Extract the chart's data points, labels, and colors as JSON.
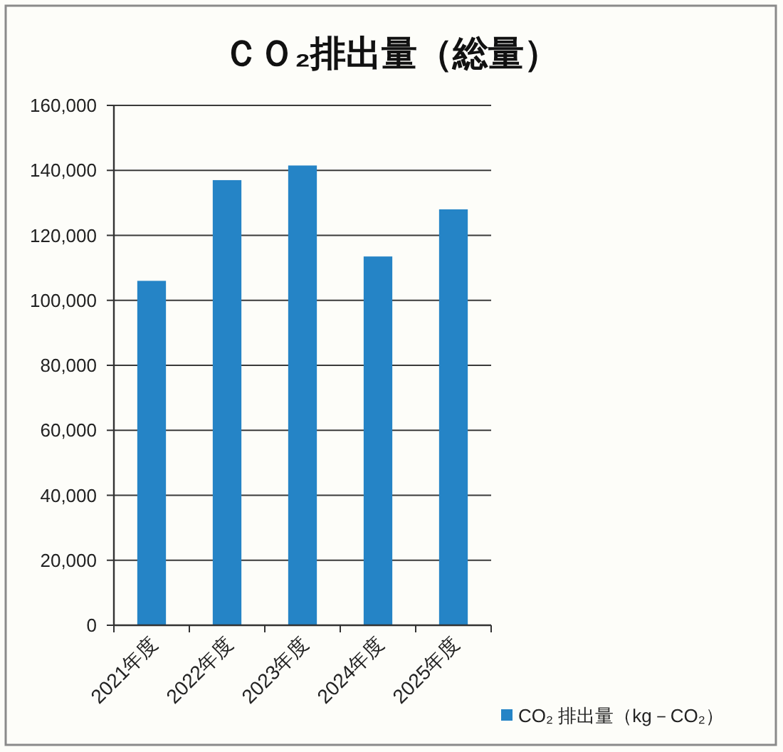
{
  "chart_data": {
    "type": "bar",
    "title": "ＣＯ₂排出量（総量）",
    "categories": [
      "2021年度",
      "2022年度",
      "2023年度",
      "2024年度",
      "2025年度"
    ],
    "series": [
      {
        "name": "CO₂ 排出量（kg－CO₂）",
        "color": "#2584c6",
        "values": [
          106000,
          137000,
          141500,
          113500,
          128000
        ]
      }
    ],
    "ylim": [
      0,
      160000
    ],
    "yticks": [
      {
        "value": 0,
        "label": "0"
      },
      {
        "value": 20000,
        "label": "20,000"
      },
      {
        "value": 40000,
        "label": "40,000"
      },
      {
        "value": 60000,
        "label": "60,000"
      },
      {
        "value": 80000,
        "label": "80,000"
      },
      {
        "value": 100000,
        "label": "100,000"
      },
      {
        "value": 120000,
        "label": "120,000"
      },
      {
        "value": 140000,
        "label": "140,000"
      },
      {
        "value": 160000,
        "label": "160,000"
      }
    ],
    "grid": "y",
    "legend": "bottom right"
  }
}
